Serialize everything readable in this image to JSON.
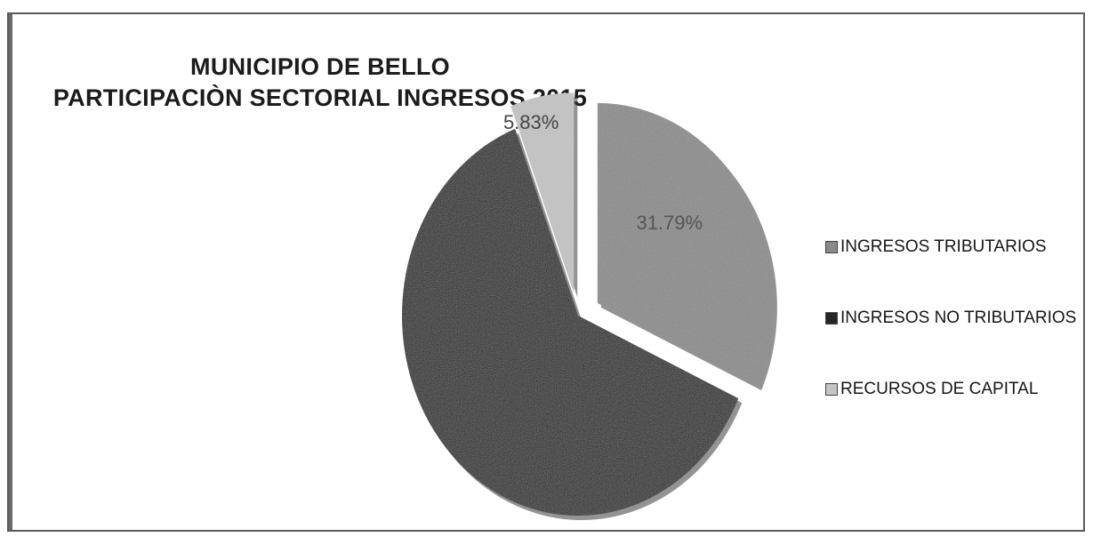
{
  "chart_data": {
    "type": "pie",
    "title": [
      "MUNICIPIO DE BELLO",
      "PARTICIPACIÒN SECTORIAL INGRESOS 2015"
    ],
    "series": [
      {
        "name": "INGRESOS TRIBUTARIOS",
        "value": 31.79,
        "label": "31.79%",
        "color": "#8a8a8a",
        "exploded": true
      },
      {
        "name": "INGRESOS NO TRIBUTARIOS",
        "value": 62.38,
        "label": "",
        "color": "#262626",
        "exploded": false
      },
      {
        "name": "RECURSOS DE CAPITAL",
        "value": 5.83,
        "label": "5.83%",
        "color": "#c4c4c4",
        "exploded": true
      }
    ],
    "legend_position": "right"
  }
}
